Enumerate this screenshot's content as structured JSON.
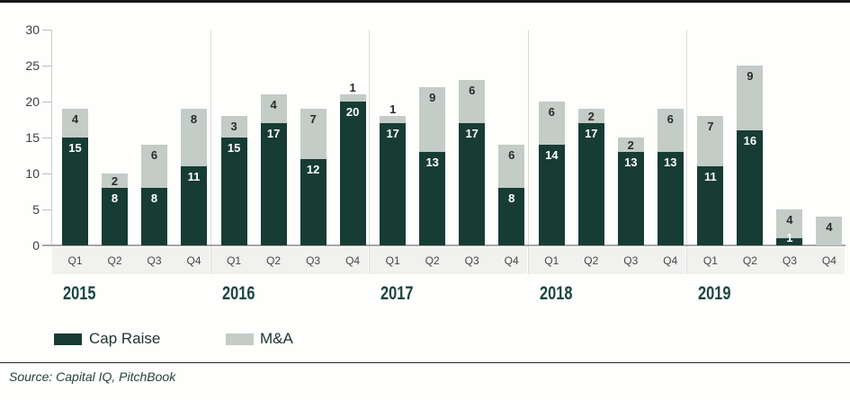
{
  "chart_data": {
    "type": "bar",
    "stacked": true,
    "title": "",
    "years": [
      "2015",
      "2016",
      "2017",
      "2018",
      "2019"
    ],
    "quarters": [
      "Q1",
      "Q2",
      "Q3",
      "Q4"
    ],
    "series": [
      {
        "name": "Cap Raise",
        "color": "#173c34",
        "values": [
          [
            15,
            8,
            8,
            11
          ],
          [
            15,
            17,
            12,
            20
          ],
          [
            17,
            13,
            17,
            8
          ],
          [
            14,
            17,
            13,
            13
          ],
          [
            11,
            16,
            1,
            0
          ]
        ]
      },
      {
        "name": "M&A",
        "color": "#c3ccc7",
        "values": [
          [
            4,
            2,
            6,
            8
          ],
          [
            3,
            4,
            7,
            1
          ],
          [
            1,
            9,
            6,
            6
          ],
          [
            6,
            2,
            2,
            6
          ],
          [
            7,
            9,
            4,
            4
          ]
        ]
      }
    ],
    "y_axis": {
      "min": 0,
      "max": 30,
      "step": 5,
      "ticks": [
        "0",
        "5",
        "10",
        "15",
        "20",
        "25",
        "30"
      ]
    },
    "grid": "off",
    "legend_position": "bottom-left"
  },
  "legend": {
    "cap_raise_label": "Cap Raise",
    "mna_label": "M&A"
  },
  "source_text": "Source: Capital IQ, PitchBook",
  "colors": {
    "cap_raise": "#173c34",
    "mna": "#c3ccc7",
    "band": "#f1f1f0",
    "year_label": "#1b463d"
  }
}
